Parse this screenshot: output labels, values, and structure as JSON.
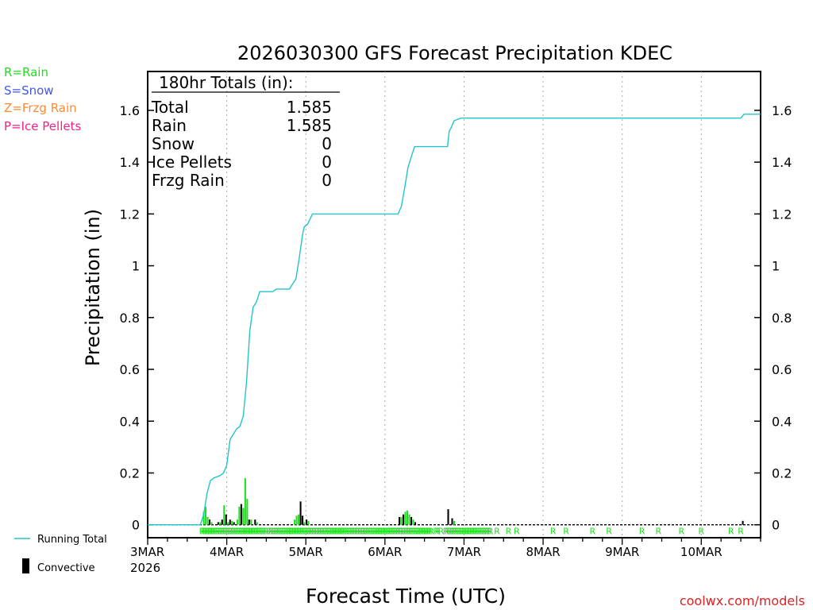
{
  "chart_data": {
    "type": "bar+line",
    "title": "2026030300 GFS Forecast Precipitation KDEC",
    "xlabel": "Forecast Time (UTC)",
    "ylabel": "Precipitation (in)",
    "ylim": [
      -0.05,
      1.75
    ],
    "xlim_hours": [
      0,
      186
    ],
    "yticks": [
      0,
      0.2,
      0.4,
      0.6,
      0.8,
      1,
      1.2,
      1.4,
      1.6
    ],
    "ytick_labels": [
      "0",
      "0.2",
      "0.4",
      "0.6",
      "0.8",
      "1",
      "1.2",
      "1.4",
      "1.6"
    ],
    "xticks": [
      {
        "hour": 0,
        "label": "3MAR",
        "sublabel": "2026"
      },
      {
        "hour": 24,
        "label": "4MAR"
      },
      {
        "hour": 48,
        "label": "5MAR"
      },
      {
        "hour": 72,
        "label": "6MAR"
      },
      {
        "hour": 96,
        "label": "7MAR"
      },
      {
        "hour": 120,
        "label": "8MAR"
      },
      {
        "hour": 144,
        "label": "9MAR"
      },
      {
        "hour": 168,
        "label": "10MAR"
      }
    ],
    "ptype_legend": [
      {
        "label": "R=Rain",
        "color": "#22dd22"
      },
      {
        "label": "S=Snow",
        "color": "#4455ee"
      },
      {
        "label": "Z=Frzg Rain",
        "color": "#ff8833"
      },
      {
        "label": "P=Ice Pellets",
        "color": "#ee2288"
      }
    ],
    "totals": {
      "header": "180hr Totals (in):",
      "rows": [
        {
          "label": "Total",
          "value": "1.585"
        },
        {
          "label": "Rain",
          "value": "1.585"
        },
        {
          "label": "Snow",
          "value": "0"
        },
        {
          "label": "Ice Pellets",
          "value": "0"
        },
        {
          "label": "Frzg Rain",
          "value": "0"
        }
      ]
    },
    "series_legend": {
      "running_total": "Running Total",
      "convective": "Convective"
    },
    "colors": {
      "running_total": "#22c4cc",
      "bar_rain": "#22dd22",
      "bar_convective": "#000000",
      "ptype_rain": "#22dd22"
    },
    "running_total": [
      [
        0,
        0
      ],
      [
        16,
        0
      ],
      [
        17,
        0.04
      ],
      [
        18,
        0.12
      ],
      [
        19,
        0.17
      ],
      [
        20,
        0.18
      ],
      [
        22,
        0.19
      ],
      [
        23,
        0.2
      ],
      [
        24,
        0.23
      ],
      [
        25,
        0.33
      ],
      [
        27,
        0.37
      ],
      [
        28,
        0.38
      ],
      [
        29,
        0.42
      ],
      [
        30,
        0.55
      ],
      [
        31,
        0.75
      ],
      [
        32,
        0.84
      ],
      [
        33,
        0.86
      ],
      [
        34,
        0.9
      ],
      [
        38,
        0.9
      ],
      [
        39,
        0.91
      ],
      [
        43,
        0.91
      ],
      [
        45,
        0.95
      ],
      [
        46,
        1.03
      ],
      [
        47,
        1.12
      ],
      [
        47.5,
        1.15
      ],
      [
        48.5,
        1.16
      ],
      [
        50,
        1.2
      ],
      [
        51,
        1.2
      ],
      [
        76,
        1.2
      ],
      [
        77,
        1.23
      ],
      [
        78,
        1.3
      ],
      [
        79,
        1.38
      ],
      [
        80,
        1.42
      ],
      [
        81,
        1.46
      ],
      [
        91,
        1.46
      ],
      [
        91.5,
        1.52
      ],
      [
        92,
        1.53
      ],
      [
        93,
        1.56
      ],
      [
        95,
        1.57
      ],
      [
        97,
        1.57
      ],
      [
        180,
        1.57
      ],
      [
        181,
        1.585
      ],
      [
        186,
        1.585
      ]
    ],
    "bars": [
      {
        "hour": 17,
        "value": 0.05,
        "kind": "rain"
      },
      {
        "hour": 17.6,
        "value": 0.07,
        "kind": "rain"
      },
      {
        "hour": 18.2,
        "value": 0.03,
        "kind": "rain"
      },
      {
        "hour": 18.8,
        "value": 0.02,
        "kind": "convective"
      },
      {
        "hour": 19.4,
        "value": 0.01,
        "kind": "rain"
      },
      {
        "hour": 21.4,
        "value": 0.01,
        "kind": "convective"
      },
      {
        "hour": 22,
        "value": 0.01,
        "kind": "rain"
      },
      {
        "hour": 22.6,
        "value": 0.02,
        "kind": "convective"
      },
      {
        "hour": 23.2,
        "value": 0.075,
        "kind": "rain"
      },
      {
        "hour": 23.8,
        "value": 0.04,
        "kind": "convective"
      },
      {
        "hour": 24.4,
        "value": 0.01,
        "kind": "rain"
      },
      {
        "hour": 25,
        "value": 0.02,
        "kind": "convective"
      },
      {
        "hour": 25.6,
        "value": 0.015,
        "kind": "rain"
      },
      {
        "hour": 26.2,
        "value": 0.01,
        "kind": "convective"
      },
      {
        "hour": 27.2,
        "value": 0.02,
        "kind": "rain"
      },
      {
        "hour": 27.8,
        "value": 0.07,
        "kind": "rain"
      },
      {
        "hour": 28.4,
        "value": 0.08,
        "kind": "convective"
      },
      {
        "hour": 29,
        "value": 0.065,
        "kind": "rain"
      },
      {
        "hour": 29.6,
        "value": 0.18,
        "kind": "rain"
      },
      {
        "hour": 30.2,
        "value": 0.1,
        "kind": "rain"
      },
      {
        "hour": 30.8,
        "value": 0.02,
        "kind": "convective"
      },
      {
        "hour": 31.4,
        "value": 0.02,
        "kind": "rain"
      },
      {
        "hour": 32.6,
        "value": 0.02,
        "kind": "convective"
      },
      {
        "hour": 33.2,
        "value": 0.01,
        "kind": "rain"
      },
      {
        "hour": 44.6,
        "value": 0.02,
        "kind": "rain"
      },
      {
        "hour": 45.2,
        "value": 0.035,
        "kind": "rain"
      },
      {
        "hour": 45.8,
        "value": 0.04,
        "kind": "rain"
      },
      {
        "hour": 46.4,
        "value": 0.09,
        "kind": "convective"
      },
      {
        "hour": 47,
        "value": 0.035,
        "kind": "convective"
      },
      {
        "hour": 47.6,
        "value": 0.01,
        "kind": "rain"
      },
      {
        "hour": 48.2,
        "value": 0.02,
        "kind": "convective"
      },
      {
        "hour": 48.8,
        "value": 0.015,
        "kind": "rain"
      },
      {
        "hour": 76.4,
        "value": 0.03,
        "kind": "convective"
      },
      {
        "hour": 77,
        "value": 0.03,
        "kind": "rain"
      },
      {
        "hour": 77.6,
        "value": 0.04,
        "kind": "convective"
      },
      {
        "hour": 78.2,
        "value": 0.05,
        "kind": "rain"
      },
      {
        "hour": 78.8,
        "value": 0.055,
        "kind": "rain"
      },
      {
        "hour": 79.4,
        "value": 0.04,
        "kind": "rain"
      },
      {
        "hour": 80,
        "value": 0.03,
        "kind": "convective"
      },
      {
        "hour": 80.6,
        "value": 0.02,
        "kind": "rain"
      },
      {
        "hour": 81.2,
        "value": 0.01,
        "kind": "convective"
      },
      {
        "hour": 91.2,
        "value": 0.06,
        "kind": "convective"
      },
      {
        "hour": 92.4,
        "value": 0.025,
        "kind": "convective"
      },
      {
        "hour": 93,
        "value": 0.015,
        "kind": "rain"
      },
      {
        "hour": 180.6,
        "value": 0.015,
        "kind": "convective"
      }
    ],
    "ptype_rain_hours": [
      16.5,
      17,
      17.5,
      18,
      18.5,
      19,
      19.5,
      20,
      20.5,
      21,
      21.5,
      22,
      22.5,
      23,
      23.5,
      24,
      24.5,
      25,
      25.5,
      26,
      26.5,
      27,
      27.5,
      28,
      28.5,
      29,
      29.5,
      30,
      30.5,
      31,
      31.5,
      32,
      32.5,
      33,
      33.5,
      34,
      34.5,
      35,
      35.5,
      36,
      37,
      37.5,
      38,
      38.5,
      39,
      39.5,
      40,
      40.5,
      41,
      41.5,
      42,
      42.5,
      43,
      43.5,
      44,
      44.5,
      45,
      45.5,
      46,
      46.5,
      47,
      47.5,
      48,
      48.5,
      49,
      49.5,
      50,
      50.5,
      51,
      51.5,
      52,
      52.5,
      53,
      53.5,
      54,
      54.5,
      55,
      55.5,
      56,
      56.5,
      57,
      57.5,
      58,
      58.5,
      59,
      59.5,
      60,
      60.5,
      61,
      61.5,
      62,
      62.5,
      63,
      63.5,
      64,
      64.5,
      65,
      65.5,
      66,
      66.5,
      67,
      67.5,
      68,
      68.5,
      69,
      69.5,
      70,
      70.5,
      71,
      71.5,
      72,
      72.5,
      73,
      73.5,
      74,
      74.5,
      75,
      75.5,
      76,
      76.5,
      77,
      77.5,
      78,
      78.5,
      79,
      79.5,
      80,
      80.5,
      81,
      81.5,
      82,
      82.5,
      83,
      83.5,
      84,
      84.5,
      85,
      85.5,
      86,
      87.5,
      88,
      89,
      90.5,
      91,
      91.5,
      92,
      92.5,
      93,
      93.5,
      94,
      94.5,
      95,
      95.5,
      96,
      96.5,
      97,
      97.5,
      98,
      98.5,
      99,
      99.5,
      100,
      100.5,
      101,
      101.5,
      102,
      102.5,
      103,
      103.5,
      104,
      106,
      109.5,
      112,
      123,
      127,
      135,
      140,
      150,
      155,
      162,
      168,
      177,
      180
    ],
    "watermark": "coolwx.com/models"
  }
}
